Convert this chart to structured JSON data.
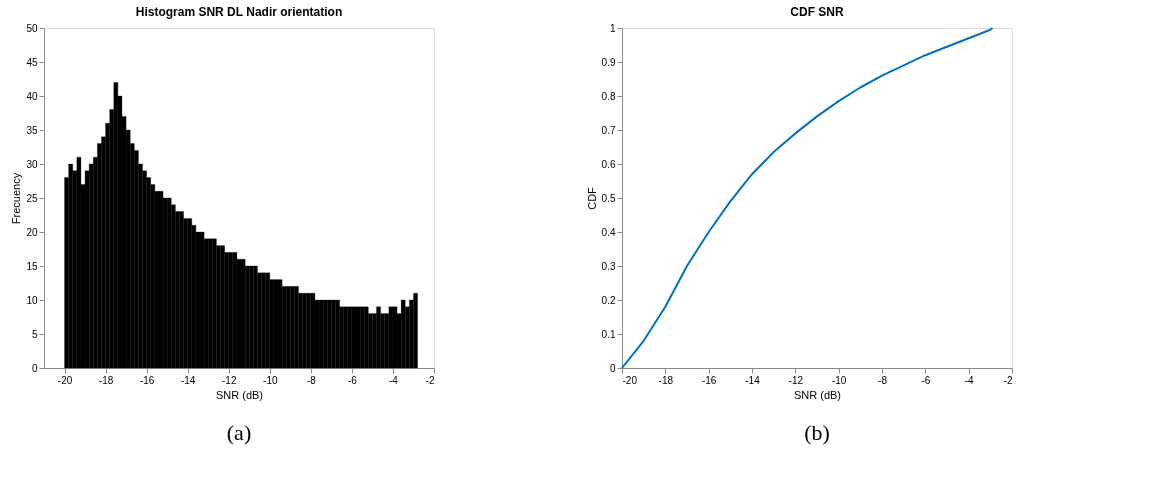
{
  "chart_data": [
    {
      "type": "histogram",
      "title": "Histogram SNR DL Nadir orientation",
      "xlabel": "SNR (dB)",
      "ylabel": "Frecuency",
      "color": "#000000",
      "bins": [
        -20.0,
        -19.8,
        -19.6,
        -19.4,
        -19.2,
        -19.0,
        -18.8,
        -18.6,
        -18.4,
        -18.2,
        -18.0,
        -17.8,
        -17.6,
        -17.4,
        -17.2,
        -17.0,
        -16.8,
        -16.6,
        -16.4,
        -16.2,
        -16.0,
        -15.8,
        -15.6,
        -15.4,
        -15.2,
        -15.0,
        -14.8,
        -14.6,
        -14.4,
        -14.2,
        -14.0,
        -13.8,
        -13.6,
        -13.4,
        -13.2,
        -13.0,
        -12.8,
        -12.6,
        -12.4,
        -12.2,
        -12.0,
        -11.8,
        -11.6,
        -11.4,
        -11.2,
        -11.0,
        -10.8,
        -10.6,
        -10.4,
        -10.2,
        -10.0,
        -9.8,
        -9.6,
        -9.4,
        -9.2,
        -9.0,
        -8.8,
        -8.6,
        -8.4,
        -8.2,
        -8.0,
        -7.8,
        -7.6,
        -7.4,
        -7.2,
        -7.0,
        -6.8,
        -6.6,
        -6.4,
        -6.2,
        -6.0,
        -5.8,
        -5.6,
        -5.4,
        -5.2,
        -5.0,
        -4.8,
        -4.6,
        -4.4,
        -4.2,
        -4.0,
        -3.8,
        -3.6,
        -3.4,
        -3.2,
        -3.0,
        -2.8
      ],
      "values": [
        28,
        30,
        29,
        31,
        27,
        29,
        30,
        31,
        33,
        34,
        36,
        38,
        42,
        40,
        37,
        35,
        33,
        32,
        30,
        29,
        28,
        27,
        26,
        26,
        25,
        25,
        24,
        23,
        23,
        22,
        22,
        21,
        20,
        20,
        19,
        19,
        19,
        18,
        18,
        17,
        17,
        17,
        16,
        16,
        15,
        15,
        15,
        14,
        14,
        14,
        13,
        13,
        13,
        12,
        12,
        12,
        12,
        11,
        11,
        11,
        11,
        10,
        10,
        10,
        10,
        10,
        10,
        9,
        9,
        9,
        9,
        9,
        9,
        9,
        8,
        8,
        9,
        8,
        8,
        9,
        9,
        8,
        10,
        9,
        10,
        11
      ],
      "xlim": [
        -21,
        -2
      ],
      "xticks": [
        -20,
        -18,
        -16,
        -14,
        -12,
        -10,
        -8,
        -6,
        -4,
        -2
      ],
      "ylim": [
        0,
        50
      ],
      "yticks": [
        0,
        5,
        10,
        15,
        20,
        25,
        30,
        35,
        40,
        45,
        50
      ],
      "grid": false,
      "annotations": [
        "(a)"
      ]
    },
    {
      "type": "line",
      "title": "CDF SNR",
      "xlabel": "SNR (dB)",
      "ylabel": "CDF",
      "x": [
        -20,
        -19,
        -18,
        -17,
        -16,
        -15,
        -14,
        -13,
        -12,
        -11,
        -10,
        -9,
        -8,
        -7,
        -6,
        -5,
        -4,
        -3,
        -2.9
      ],
      "series": [
        {
          "color": "#0072bd",
          "values": [
            0,
            0.08,
            0.18,
            0.3,
            0.4,
            0.49,
            0.57,
            0.635,
            0.69,
            0.74,
            0.785,
            0.825,
            0.86,
            0.89,
            0.92,
            0.945,
            0.97,
            0.995,
            1.0
          ]
        }
      ],
      "xlim": [
        -20,
        -2
      ],
      "xticks": [
        -20,
        -18,
        -16,
        -14,
        -12,
        -10,
        -8,
        -6,
        -4,
        -2
      ],
      "ylim": [
        0,
        1
      ],
      "yticks": [
        0,
        0.1,
        0.2,
        0.3,
        0.4,
        0.5,
        0.6,
        0.7,
        0.8,
        0.9,
        1
      ],
      "grid": false,
      "marker": "none",
      "line_style": "solid",
      "annotations": [
        "(b)"
      ]
    }
  ]
}
